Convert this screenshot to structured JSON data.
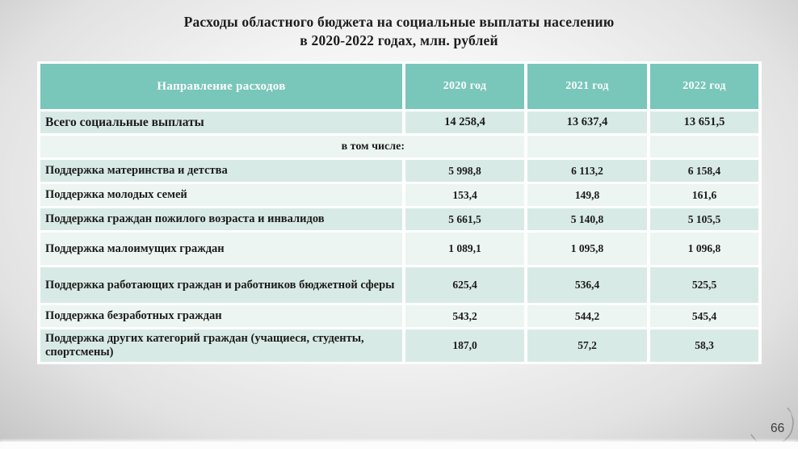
{
  "slide": {
    "title_line1": "Расходы областного бюджета на социальные выплаты населению",
    "title_line2": "в 2020-2022 годах, млн. рублей",
    "page_number": "66"
  },
  "table": {
    "headers": [
      "Направление расходов",
      "2020 год",
      "2021 год",
      "2022 год"
    ],
    "rows": [
      {
        "type": "total",
        "label": "Всего социальные выплаты",
        "values": [
          "14 258,4",
          "13 637,4",
          "13 651,5"
        ]
      },
      {
        "type": "subheader",
        "label": "в том числе:",
        "values": [
          "",
          "",
          ""
        ]
      },
      {
        "type": "",
        "label": "Поддержка материнства и детства",
        "values": [
          "5 998,8",
          "6 113,2",
          "6 158,4"
        ]
      },
      {
        "type": "",
        "label": "Поддержка молодых семей",
        "values": [
          "153,4",
          "149,8",
          "161,6"
        ]
      },
      {
        "type": "",
        "label": "Поддержка граждан пожилого возраста и инвалидов",
        "values": [
          "5 661,5",
          "5 140,8",
          "5 105,5"
        ]
      },
      {
        "type": "",
        "label": "Поддержка малоимущих граждан",
        "values": [
          "1 089,1",
          "1 095,8",
          "1 096,8"
        ]
      },
      {
        "type": "",
        "label": "Поддержка работающих граждан и работников бюджетной сферы",
        "values": [
          "625,4",
          "536,4",
          "525,5"
        ]
      },
      {
        "type": "",
        "label": "Поддержка безработных граждан",
        "values": [
          "543,2",
          "544,2",
          "545,4"
        ]
      },
      {
        "type": "",
        "label": "Поддержка других категорий граждан (учащиеся, студенты, спортсмены)",
        "values": [
          "187,0",
          "57,2",
          "58,3"
        ]
      }
    ]
  },
  "colors": {
    "header_bg": "#79c6ba",
    "row_dark": "#d8eae5",
    "row_light": "#ecf5f1",
    "header_text": "#fdfffe",
    "body_text": "#1b1b1b",
    "title_text": "#1d1d1d"
  },
  "chart_data": {
    "type": "table",
    "title": "Расходы областного бюджета на социальные выплаты населению в 2020-2022 годах, млн. рублей",
    "unit": "млн. рублей",
    "columns": [
      "Направление расходов",
      "2020 год",
      "2021 год",
      "2022 год"
    ],
    "rows": [
      [
        "Всего социальные выплаты",
        14258.4,
        13637.4,
        13651.5
      ],
      [
        "Поддержка материнства и детства",
        5998.8,
        6113.2,
        6158.4
      ],
      [
        "Поддержка молодых семей",
        153.4,
        149.8,
        161.6
      ],
      [
        "Поддержка граждан пожилого возраста и инвалидов",
        5661.5,
        5140.8,
        5105.5
      ],
      [
        "Поддержка малоимущих граждан",
        1089.1,
        1095.8,
        1096.8
      ],
      [
        "Поддержка работающих граждан и работников бюджетной сферы",
        625.4,
        536.4,
        525.5
      ],
      [
        "Поддержка безработных граждан",
        543.2,
        544.2,
        545.4
      ],
      [
        "Поддержка других категорий граждан (учащиеся, студенты, спортсмены)",
        187.0,
        57.2,
        58.3
      ]
    ]
  }
}
